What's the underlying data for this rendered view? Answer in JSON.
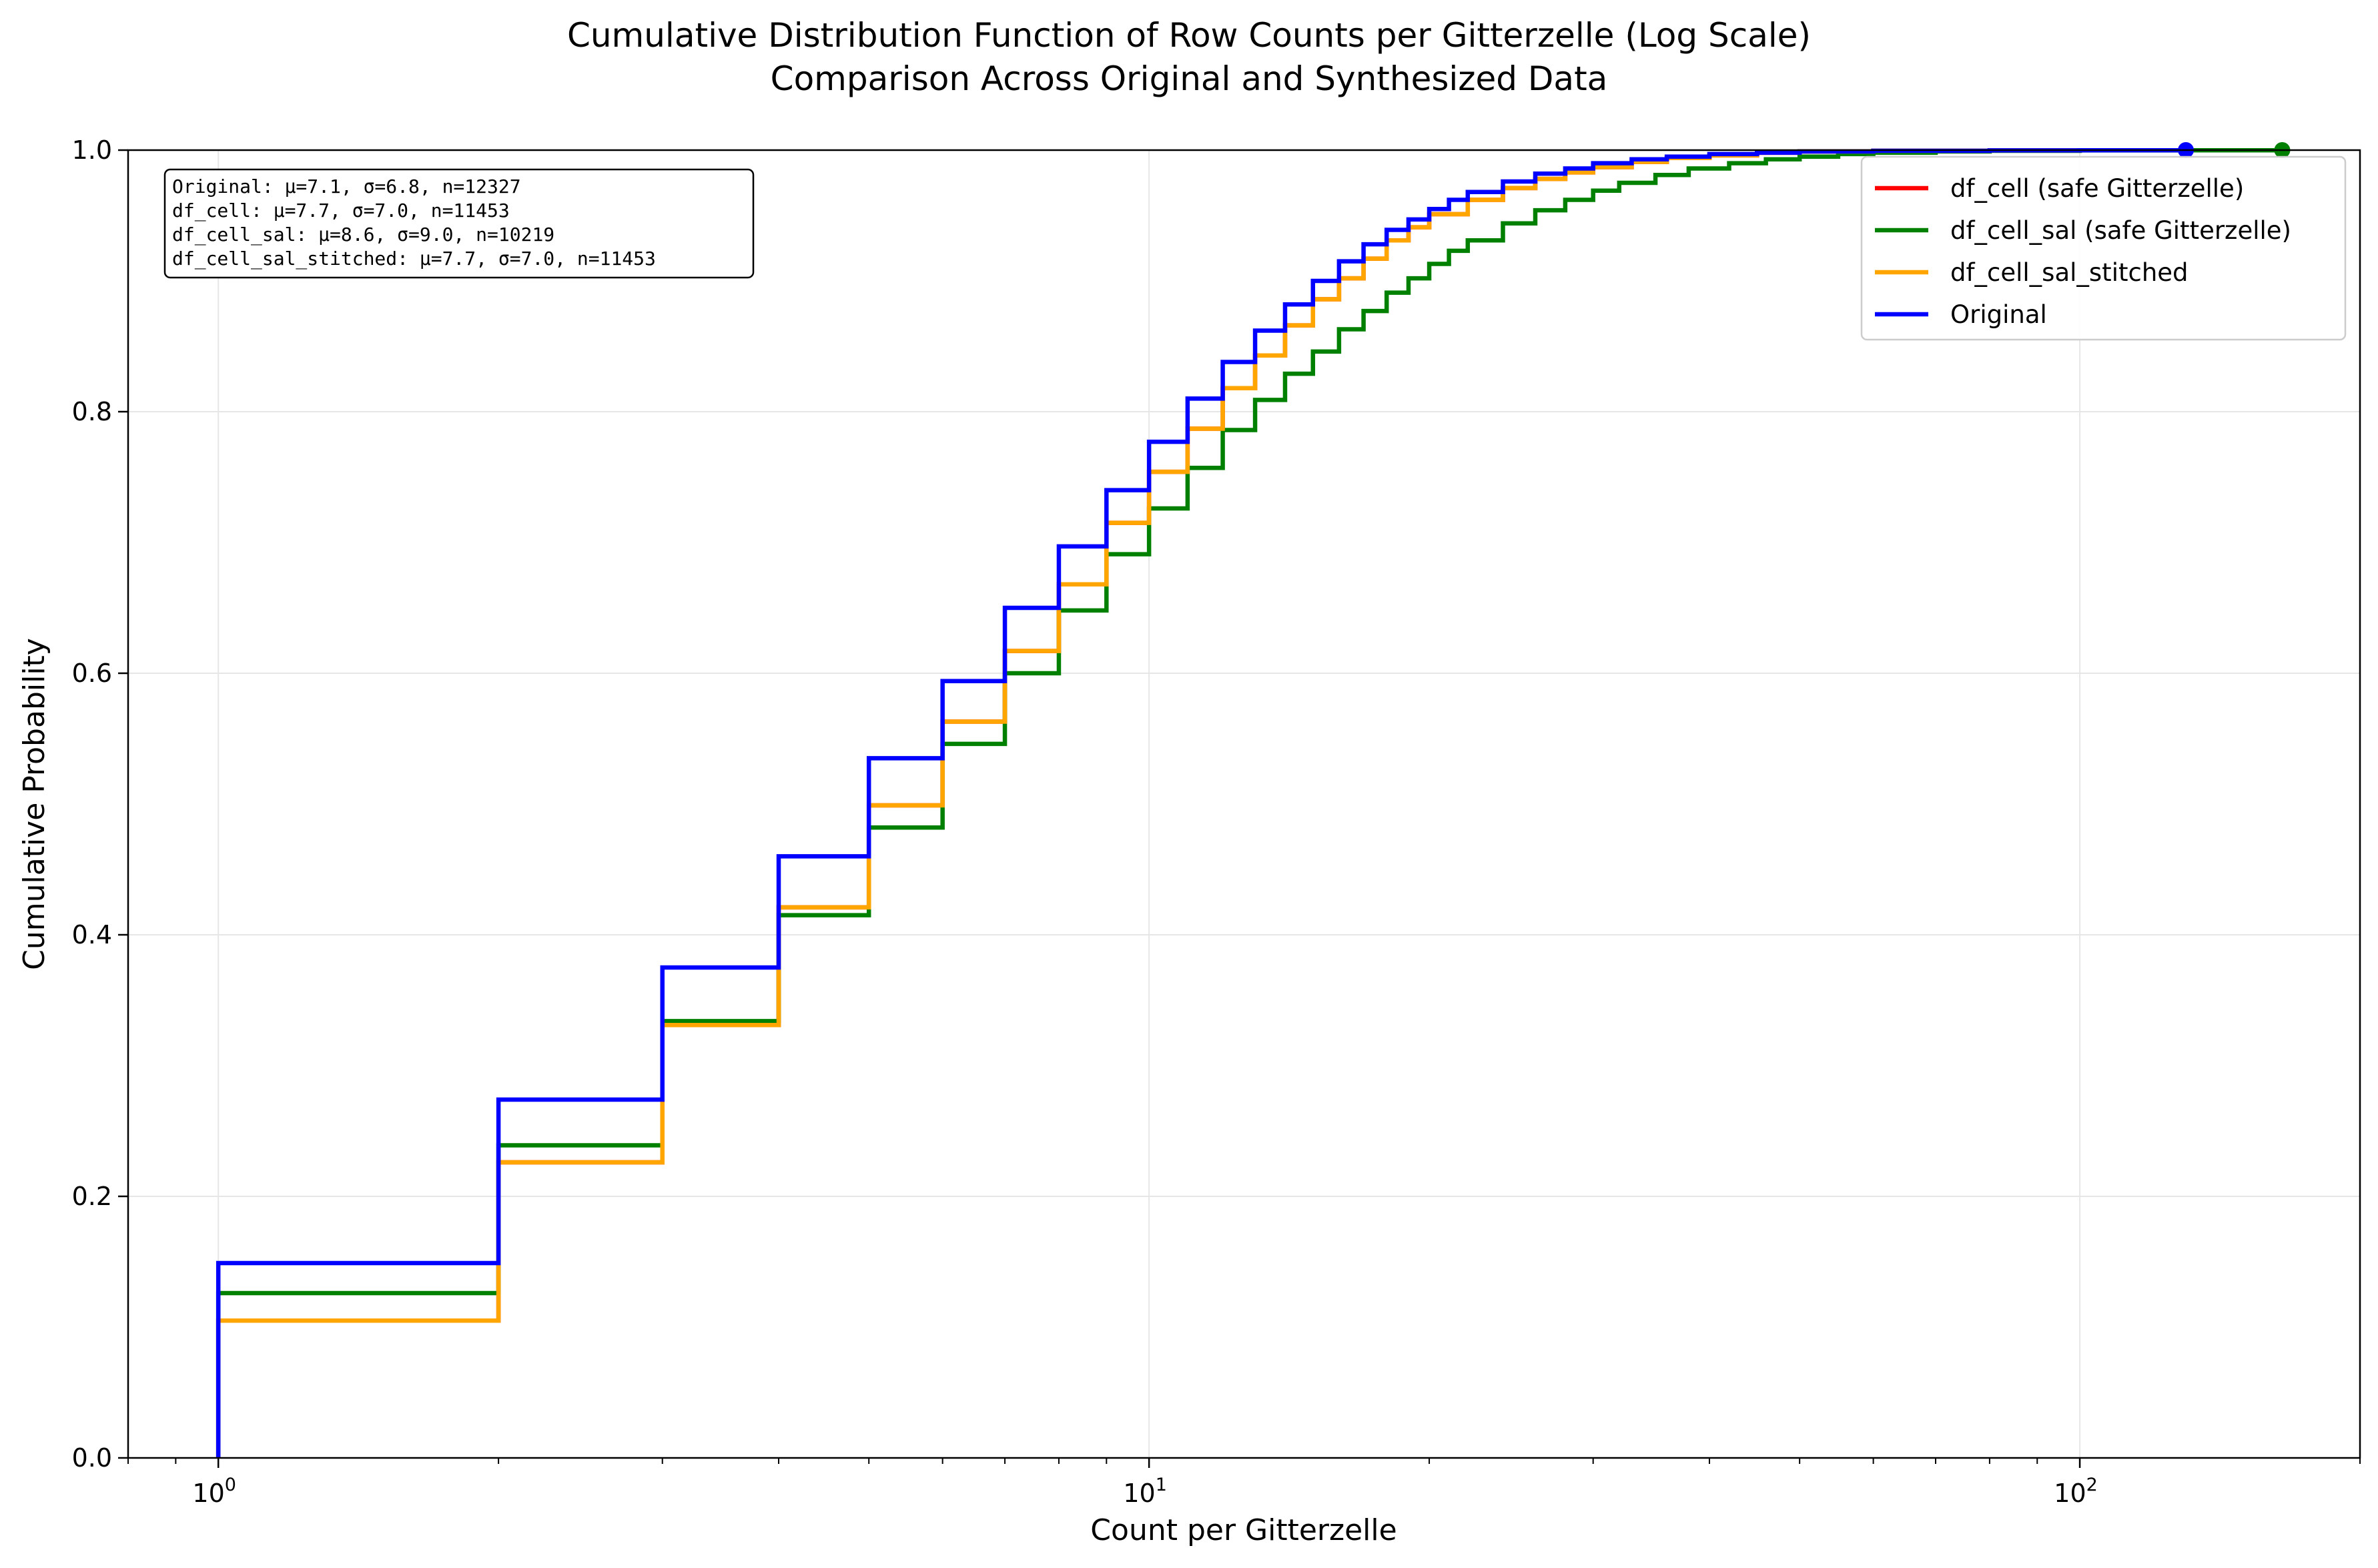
{
  "chart_data": {
    "type": "line",
    "title": [
      "Cumulative Distribution Function of Row Counts per Gitterzelle (Log Scale)",
      "Comparison Across Original and Synthesized Data"
    ],
    "xlabel": "Count per Gitterzelle",
    "ylabel": "Cumulative Probability",
    "x_scale": "log",
    "xlim": [
      0.8,
      200
    ],
    "ylim": [
      0,
      1.0
    ],
    "x_ticks": [
      1,
      10,
      100
    ],
    "x_tick_labels": [
      {
        "base": "10",
        "exp": "0"
      },
      {
        "base": "10",
        "exp": "1"
      },
      {
        "base": "10",
        "exp": "2"
      }
    ],
    "y_ticks": [
      0.0,
      0.2,
      0.4,
      0.6,
      0.8,
      1.0
    ],
    "y_tick_labels": [
      "0.0",
      "0.2",
      "0.4",
      "0.6",
      "0.8",
      "1.0"
    ],
    "grid": true,
    "legend_position": "top-right",
    "stats_box": [
      "Original: μ=7.1, σ=6.8, n=12327",
      "df_cell: μ=7.7, σ=7.0, n=11453",
      "df_cell_sal: μ=8.6, σ=9.0, n=10219",
      "df_cell_sal_stitched: μ=7.7, σ=7.0, n=11453"
    ],
    "series": [
      {
        "name": "df_cell (safe Gitterzelle)",
        "color": "#ff0000",
        "x": [
          1,
          2,
          3,
          4,
          5,
          6,
          7,
          8,
          9,
          10,
          11,
          12,
          13,
          14,
          15,
          16,
          17,
          18,
          19,
          20,
          22,
          24,
          26,
          28,
          30,
          33,
          36,
          40,
          45,
          50,
          60,
          80,
          100,
          130
        ],
        "y": [
          0.105,
          0.226,
          0.331,
          0.421,
          0.499,
          0.563,
          0.617,
          0.668,
          0.715,
          0.754,
          0.787,
          0.818,
          0.843,
          0.866,
          0.886,
          0.902,
          0.917,
          0.931,
          0.941,
          0.951,
          0.962,
          0.971,
          0.978,
          0.983,
          0.987,
          0.991,
          0.994,
          0.996,
          0.998,
          0.999,
          0.9995,
          0.9998,
          0.9999,
          1.0
        ],
        "end_marker": false
      },
      {
        "name": "df_cell_sal (safe Gitterzelle)",
        "color": "#008000",
        "x": [
          1,
          2,
          3,
          4,
          5,
          6,
          7,
          8,
          9,
          10,
          11,
          12,
          13,
          14,
          15,
          16,
          17,
          18,
          19,
          20,
          21,
          22,
          24,
          26,
          28,
          30,
          32,
          35,
          38,
          42,
          46,
          50,
          55,
          60,
          70,
          80,
          100,
          130,
          165
        ],
        "y": [
          0.126,
          0.239,
          0.334,
          0.415,
          0.482,
          0.546,
          0.6,
          0.648,
          0.691,
          0.726,
          0.757,
          0.786,
          0.809,
          0.829,
          0.846,
          0.863,
          0.877,
          0.891,
          0.902,
          0.913,
          0.923,
          0.931,
          0.944,
          0.954,
          0.962,
          0.969,
          0.975,
          0.981,
          0.986,
          0.99,
          0.993,
          0.995,
          0.997,
          0.998,
          0.999,
          0.9995,
          0.9998,
          0.9999,
          1.0
        ],
        "end_marker": true
      },
      {
        "name": "df_cell_sal_stitched",
        "color": "#ffa500",
        "x": [
          1,
          2,
          3,
          4,
          5,
          6,
          7,
          8,
          9,
          10,
          11,
          12,
          13,
          14,
          15,
          16,
          17,
          18,
          19,
          20,
          22,
          24,
          26,
          28,
          30,
          33,
          36,
          40,
          45,
          50,
          60,
          80,
          100,
          130
        ],
        "y": [
          0.105,
          0.226,
          0.331,
          0.421,
          0.499,
          0.563,
          0.617,
          0.668,
          0.715,
          0.754,
          0.787,
          0.818,
          0.843,
          0.866,
          0.886,
          0.902,
          0.917,
          0.931,
          0.941,
          0.951,
          0.962,
          0.971,
          0.978,
          0.983,
          0.987,
          0.991,
          0.994,
          0.996,
          0.998,
          0.999,
          0.9995,
          0.9998,
          0.9999,
          1.0
        ],
        "end_marker": false
      },
      {
        "name": "Original",
        "color": "#0000ff",
        "x": [
          1,
          2,
          3,
          4,
          5,
          6,
          7,
          8,
          9,
          10,
          11,
          12,
          13,
          14,
          15,
          16,
          17,
          18,
          19,
          20,
          21,
          22,
          24,
          26,
          28,
          30,
          33,
          36,
          40,
          45,
          50,
          60,
          80,
          100,
          130
        ],
        "y": [
          0.149,
          0.274,
          0.375,
          0.46,
          0.535,
          0.594,
          0.65,
          0.697,
          0.74,
          0.777,
          0.81,
          0.838,
          0.862,
          0.882,
          0.9,
          0.915,
          0.928,
          0.939,
          0.947,
          0.955,
          0.962,
          0.968,
          0.976,
          0.982,
          0.986,
          0.99,
          0.993,
          0.995,
          0.997,
          0.998,
          0.999,
          0.9995,
          0.9998,
          0.9999,
          1.0
        ],
        "end_marker": true
      }
    ]
  }
}
